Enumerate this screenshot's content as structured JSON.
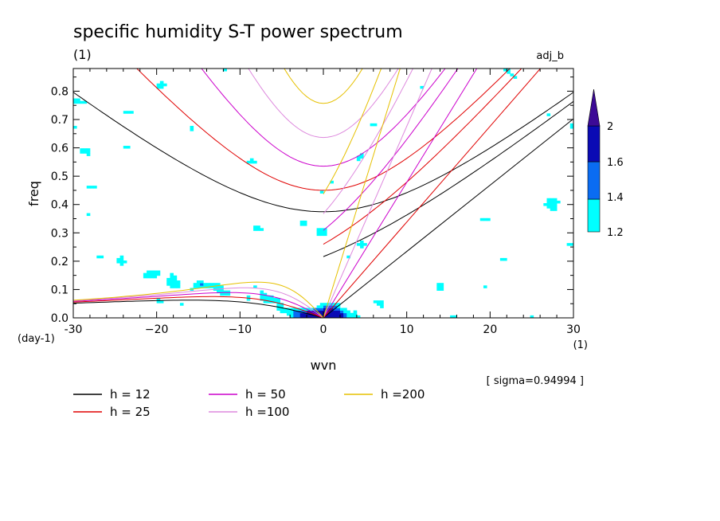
{
  "chart_data": {
    "type": "heatmap",
    "title": "specific humidity S-T power spectrum",
    "subtitle_left": "(1)",
    "subtitle_right": "adj_b",
    "xlabel": "wvn",
    "ylabel": "freq",
    "x_unit_label": "(1)",
    "y_unit_label": "(day-1)",
    "xlim": [
      -30,
      30
    ],
    "ylim": [
      0,
      0.88
    ],
    "xticks": [
      -30,
      -20,
      -10,
      0,
      10,
      20,
      30
    ],
    "xtick_labels": [
      "-30",
      "−20",
      "−10",
      "0",
      "10",
      "20",
      "30"
    ],
    "yticks": [
      0,
      0.1,
      0.2,
      0.3,
      0.4,
      0.5,
      0.6,
      0.7,
      0.8
    ],
    "ytick_labels": [
      "0.0",
      "0.1",
      "0.2",
      "0.3",
      "0.4",
      "0.5",
      "0.6",
      "0.7",
      "0.8"
    ],
    "sigma_note": "[ sigma=0.94994 ]",
    "colorbar": {
      "levels": [
        "1.2",
        "1.4",
        "1.6",
        "2"
      ],
      "colors": [
        "#00ffff",
        "#0a6cf2",
        "#0a0ab4",
        "#3c0a96"
      ]
    },
    "contour_colors": {
      "l1": "#00ffff",
      "l2": "#0a6cf2",
      "l3": "#0a0ab4"
    },
    "dispersion_curves": [
      {
        "name": "h = 12",
        "h": 12,
        "color": "#000000"
      },
      {
        "name": "h = 25",
        "h": 25,
        "color": "#e00000"
      },
      {
        "name": "h = 50",
        "h": 50,
        "color": "#cc00cc"
      },
      {
        "name": "h =100",
        "h": 100,
        "color": "#dd88dd"
      },
      {
        "name": "h =200",
        "h": 200,
        "color": "#e6c000"
      }
    ]
  }
}
